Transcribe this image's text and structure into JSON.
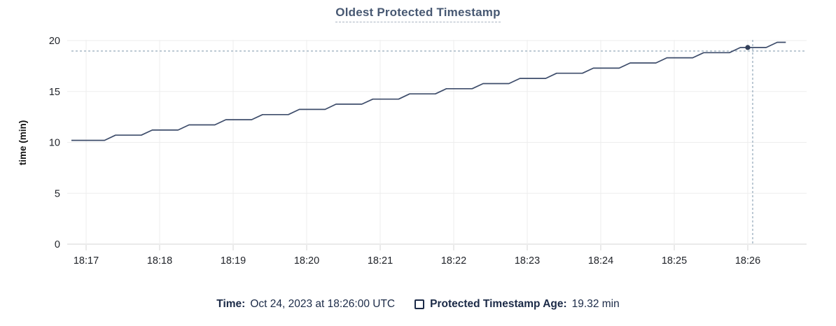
{
  "header": {
    "title": "Oldest Protected Timestamp"
  },
  "footer": {
    "time_label": "Time:",
    "time_value": "Oct 24, 2023 at 18:26:00 UTC",
    "series_label": "Protected Timestamp Age:",
    "series_value": "19.32 min"
  },
  "chart_data": {
    "type": "line",
    "title": "Oldest Protected Timestamp",
    "xlabel": "",
    "ylabel": "time (min)",
    "ylim": [
      0,
      20
    ],
    "yticks": [
      0,
      5,
      10,
      15,
      20
    ],
    "x_base_time": "18:17",
    "x_tick_minutes": [
      0,
      1,
      2,
      3,
      4,
      5,
      6,
      7,
      8,
      9
    ],
    "x_tick_labels": [
      "18:17",
      "18:18",
      "18:19",
      "18:20",
      "18:21",
      "18:22",
      "18:23",
      "18:24",
      "18:25",
      "18:26"
    ],
    "grid": true,
    "legend_position": "bottom",
    "series": [
      {
        "name": "Protected Timestamp Age",
        "unit": "min",
        "points_t_seconds_value_min": [
          [
            -12,
            10.2
          ],
          [
            15,
            10.2
          ],
          [
            24,
            10.71
          ],
          [
            45,
            10.71
          ],
          [
            54,
            11.21
          ],
          [
            75,
            11.21
          ],
          [
            84,
            11.72
          ],
          [
            105,
            11.72
          ],
          [
            114,
            12.23
          ],
          [
            135,
            12.23
          ],
          [
            144,
            12.73
          ],
          [
            165,
            12.73
          ],
          [
            174,
            13.24
          ],
          [
            195,
            13.24
          ],
          [
            204,
            13.75
          ],
          [
            225,
            13.75
          ],
          [
            234,
            14.25
          ],
          [
            255,
            14.25
          ],
          [
            264,
            14.76
          ],
          [
            285,
            14.76
          ],
          [
            294,
            15.27
          ],
          [
            315,
            15.27
          ],
          [
            324,
            15.77
          ],
          [
            345,
            15.77
          ],
          [
            354,
            16.28
          ],
          [
            375,
            16.28
          ],
          [
            384,
            16.79
          ],
          [
            405,
            16.79
          ],
          [
            414,
            17.29
          ],
          [
            435,
            17.29
          ],
          [
            444,
            17.8
          ],
          [
            465,
            17.8
          ],
          [
            474,
            18.31
          ],
          [
            495,
            18.31
          ],
          [
            504,
            18.81
          ],
          [
            525,
            18.81
          ],
          [
            534,
            19.32
          ],
          [
            555,
            19.32
          ],
          [
            564,
            19.83
          ],
          [
            571,
            19.83
          ]
        ]
      }
    ],
    "hover": {
      "time": "18:26:00",
      "value_min": 19.32,
      "dot_t_seconds": 540,
      "crosshair_x_seconds": 544,
      "crosshair_y_value_min": 18.97
    },
    "colors": {
      "line": "#3e4d6b",
      "dot": "#33405a",
      "crosshair": "#9fb2c1",
      "grid": "#ededed",
      "axis": "#d6d6d6",
      "tick_label": "#1f2228",
      "title": "#475872",
      "footer_text": "#1b2a47"
    }
  }
}
